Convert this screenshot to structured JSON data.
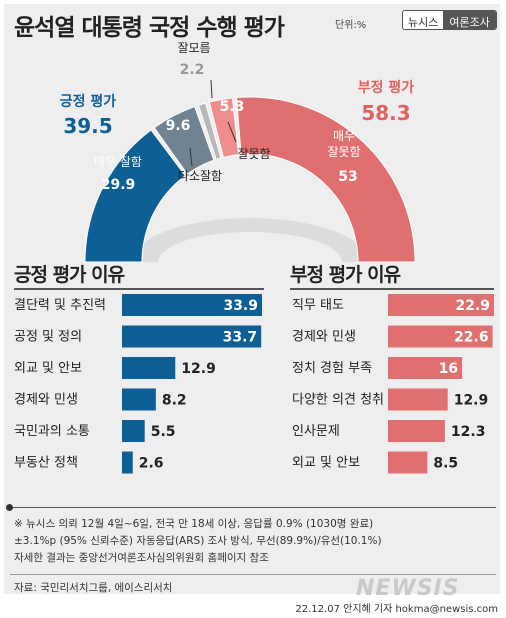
{
  "header": {
    "title": "윤석열 대통령 국정 수행 평가",
    "unit": "단위:%",
    "brand_left": "뉴시스",
    "brand_right": "여론조사"
  },
  "colors": {
    "blue": "#0e5f96",
    "slate": "#6f8393",
    "red": "#e07070",
    "pink": "#ef8d8d",
    "gray": "#b8b8b8",
    "positive_text": "#0e5f96",
    "negative_text": "#e0625f"
  },
  "chart_data": [
    {
      "type": "pie",
      "style": "half-donut",
      "groups": [
        {
          "name": "긍정 평가",
          "value": 39.5
        },
        {
          "name": "부정 평가",
          "value": 58.3
        }
      ],
      "slices": [
        {
          "label": "매우 잘함",
          "value": 29.9,
          "color": "#0e5f96",
          "group": "긍정 평가"
        },
        {
          "label": "다소잘함",
          "value": 9.6,
          "color": "#6f8393",
          "group": "긍정 평가"
        },
        {
          "label": "잘모름",
          "value": 2.2,
          "color": "#b8b8b8"
        },
        {
          "label": "잘못함",
          "value": 5.3,
          "color": "#ef8d8d",
          "group": "부정 평가"
        },
        {
          "label": "매우\n잘못함",
          "value": 53.0,
          "color": "#e07070",
          "group": "부정 평가"
        }
      ]
    },
    {
      "type": "bar",
      "orientation": "horizontal",
      "title": "긍정 평가 이유",
      "categories": [
        "결단력 및 추진력",
        "공정 및 정의",
        "외교 및 안보",
        "경제와 민생",
        "국민과의 소통",
        "부동산 정책"
      ],
      "values": [
        33.9,
        33.7,
        12.9,
        8.2,
        5.5,
        2.6
      ],
      "color": "#0e5f96",
      "xlim": [
        0,
        33.9
      ]
    },
    {
      "type": "bar",
      "orientation": "horizontal",
      "title": "부정 평가 이유",
      "categories": [
        "직무 태도",
        "경제와 민생",
        "정치 경험 부족",
        "다양한 의견 청취 부족",
        "인사문제",
        "외교 및 안보"
      ],
      "values": [
        22.9,
        22.6,
        16.0,
        12.9,
        12.3,
        8.5
      ],
      "color": "#e07070",
      "xlim": [
        0,
        22.9
      ]
    }
  ],
  "notes": [
    "※ 뉴시스 의뢰 12월 4일~6일, 전국 만 18세 이상, 응답률 0.9% (1030명 완료)",
    "±3.1%p (95% 신뢰수준) 자동응답(ARS) 조사 방식, 무선(89.9%)/유선(10.1%)",
    "자세한 결과는 중앙선거여론조사심의위원회 홈페이지 참조"
  ],
  "source": "자료: 국민리서치그룹, 에이스리서치",
  "watermark": "NEWSIS",
  "credit": "22.12.07 안지혜 기자 hokma@newsis.com"
}
